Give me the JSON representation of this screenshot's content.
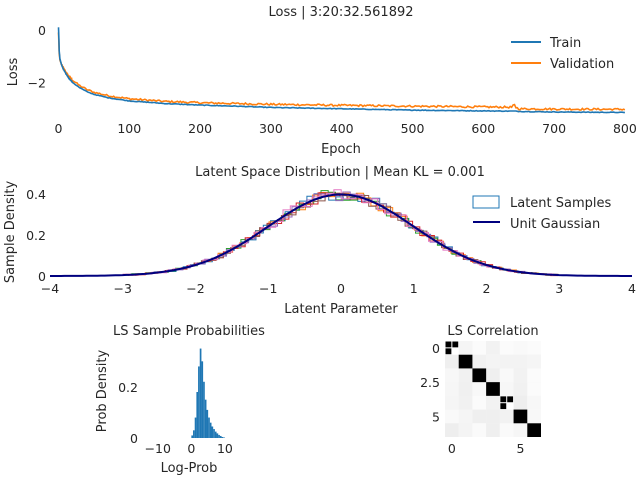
{
  "chart_data": [
    {
      "type": "line",
      "title": "Loss | 3:20:32.561892",
      "xlabel": "Epoch",
      "ylabel": "Loss",
      "xlim": [
        -12,
        810
      ],
      "ylim": [
        -3.35,
        0.3
      ],
      "xticks": [
        0,
        100,
        200,
        300,
        400,
        500,
        600,
        700,
        800
      ],
      "yticks": [
        0,
        -2
      ],
      "legend_position": "top-right",
      "series": [
        {
          "name": "Train",
          "color": "#1f77b4",
          "x": [
            0,
            1,
            2,
            4,
            6,
            10,
            15,
            20,
            30,
            40,
            50,
            70,
            100,
            150,
            200,
            250,
            300,
            400,
            500,
            600,
            645,
            650,
            700,
            800
          ],
          "y": [
            0.1,
            -0.8,
            -1.1,
            -1.3,
            -1.45,
            -1.65,
            -1.85,
            -2.0,
            -2.2,
            -2.35,
            -2.45,
            -2.58,
            -2.7,
            -2.8,
            -2.86,
            -2.9,
            -2.95,
            -3.0,
            -3.05,
            -3.08,
            -3.09,
            -3.1,
            -3.12,
            -3.14
          ]
        },
        {
          "name": "Validation",
          "color": "#ff7f0e",
          "x": [
            0,
            1,
            2,
            4,
            6,
            10,
            15,
            20,
            30,
            40,
            50,
            70,
            100,
            150,
            200,
            250,
            300,
            400,
            500,
            600,
            645,
            650,
            700,
            800
          ],
          "y": [
            -0.1,
            -0.9,
            -1.15,
            -1.3,
            -1.42,
            -1.6,
            -1.78,
            -1.92,
            -2.12,
            -2.27,
            -2.37,
            -2.5,
            -2.62,
            -2.72,
            -2.77,
            -2.8,
            -2.83,
            -2.87,
            -2.9,
            -2.93,
            -2.94,
            -3.0,
            -3.01,
            -3.02
          ]
        }
      ]
    },
    {
      "type": "line",
      "title": "Latent Space Distribution | Mean KL = 0.001",
      "xlabel": "Latent Parameter",
      "ylabel": "Sample Density",
      "xlim": [
        -4,
        4
      ],
      "ylim": [
        0,
        0.45
      ],
      "xticks": [
        -4,
        -3,
        -2,
        -1,
        0,
        1,
        2,
        3,
        4
      ],
      "yticks": [
        0.0,
        0.2,
        0.4
      ],
      "legend_position": "top-right",
      "series": [
        {
          "name": "Latent Samples",
          "style": "step histograms",
          "colors": [
            "#1f77b4",
            "#ff7f0e",
            "#2ca02c",
            "#d62728",
            "#9467bd",
            "#8c564b",
            "#e377c2"
          ]
        },
        {
          "name": "Unit Gaussian",
          "color": "#00007f",
          "function": "standard normal pdf"
        }
      ]
    },
    {
      "type": "bar",
      "title": "LS Sample Probabilities",
      "xlabel": "Log-Prob",
      "ylabel": "Prob Density",
      "xlim": [
        -15,
        13
      ],
      "ylim": [
        0,
        0.36
      ],
      "xticks": [
        -10,
        0,
        10
      ],
      "yticks": [
        0.0,
        0.2
      ],
      "color": "#1f77b4",
      "bins": [
        {
          "x": 0.0,
          "v": 0.01
        },
        {
          "x": 0.5,
          "v": 0.03
        },
        {
          "x": 1.0,
          "v": 0.08
        },
        {
          "x": 1.5,
          "v": 0.18
        },
        {
          "x": 2.0,
          "v": 0.28
        },
        {
          "x": 2.5,
          "v": 0.35
        },
        {
          "x": 3.0,
          "v": 0.3
        },
        {
          "x": 3.5,
          "v": 0.22
        },
        {
          "x": 4.0,
          "v": 0.15
        },
        {
          "x": 4.5,
          "v": 0.11
        },
        {
          "x": 5.0,
          "v": 0.08
        },
        {
          "x": 5.5,
          "v": 0.06
        },
        {
          "x": 6.0,
          "v": 0.045
        },
        {
          "x": 6.5,
          "v": 0.035
        },
        {
          "x": 7.0,
          "v": 0.025
        },
        {
          "x": 7.5,
          "v": 0.018
        },
        {
          "x": 8.0,
          "v": 0.012
        },
        {
          "x": 8.5,
          "v": 0.008
        },
        {
          "x": 9.0,
          "v": 0.004
        },
        {
          "x": 9.5,
          "v": 0.002
        }
      ]
    },
    {
      "type": "heatmap",
      "title": "LS Correlation",
      "xticks": [
        0,
        5
      ],
      "yticks": [
        0.0,
        2.5,
        5.0
      ],
      "xlim": [
        -0.5,
        6.5
      ],
      "ylim": [
        6.5,
        -0.5
      ],
      "colormap": "gray-reversed",
      "size": 7,
      "blocks": [
        [
          0,
          0
        ],
        [
          1,
          1
        ],
        [
          2,
          2
        ],
        [
          3,
          3
        ],
        [
          4,
          4
        ],
        [
          5,
          5
        ],
        [
          6,
          6
        ]
      ]
    }
  ]
}
